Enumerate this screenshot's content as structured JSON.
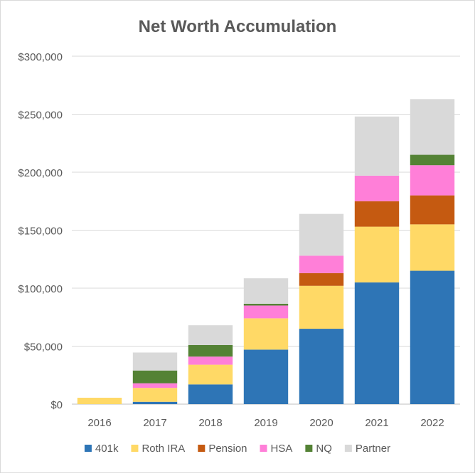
{
  "chart_data": {
    "type": "bar",
    "stacked": true,
    "title": "Net Worth Accumulation",
    "xlabel": "",
    "ylabel": "",
    "categories": [
      "2016",
      "2017",
      "2018",
      "2019",
      "2020",
      "2021",
      "2022"
    ],
    "ylim": [
      0,
      300000
    ],
    "yticks": [
      0,
      50000,
      100000,
      150000,
      200000,
      250000,
      300000
    ],
    "ytick_labels": [
      "$0",
      "$50,000",
      "$100,000",
      "$150,000",
      "$200,000",
      "$250,000",
      "$300,000"
    ],
    "grid": true,
    "legend_position": "bottom",
    "series": [
      {
        "name": "401k",
        "color": "#2e75b6",
        "values": [
          0,
          2000,
          17000,
          47000,
          65000,
          105000,
          115000
        ]
      },
      {
        "name": "Roth IRA",
        "color": "#ffd966",
        "values": [
          5500,
          12000,
          17000,
          27000,
          37000,
          48000,
          40000
        ]
      },
      {
        "name": "Pension",
        "color": "#c55a11",
        "values": [
          0,
          0,
          0,
          0,
          11000,
          22000,
          25000
        ]
      },
      {
        "name": "HSA",
        "color": "#ff7fd8",
        "values": [
          0,
          4000,
          7000,
          11000,
          15000,
          22000,
          26000
        ]
      },
      {
        "name": "NQ",
        "color": "#548235",
        "values": [
          0,
          11000,
          10000,
          1500,
          0,
          0,
          9000
        ]
      },
      {
        "name": "Partner",
        "color": "#d9d9d9",
        "values": [
          0,
          15500,
          17000,
          22000,
          36000,
          51000,
          48000
        ]
      }
    ]
  }
}
